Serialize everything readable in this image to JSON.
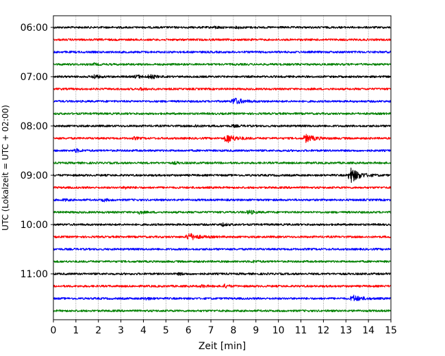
{
  "chart_data": {
    "type": "line",
    "title": "",
    "xlabel": "Zeit  [min]",
    "ylabel": "UTC (Lokalzeit = UTC + 02:00)",
    "xlim": [
      0,
      15
    ],
    "xticks": [
      "0",
      "1",
      "2",
      "3",
      "4",
      "5",
      "6",
      "7",
      "8",
      "9",
      "10",
      "11",
      "12",
      "13",
      "14",
      "15"
    ],
    "yticks": [
      "06:00",
      "07:00",
      "08:00",
      "09:00",
      "10:00",
      "11:00"
    ],
    "grid": "vertical dotted",
    "trace_interval_min": 15,
    "trace_colors": [
      "#000000",
      "#ff0000",
      "#0000ff",
      "#008000"
    ],
    "traces": [
      {
        "start": "06:00",
        "events": [
          {
            "t": 7.2,
            "amp": 1.4
          },
          {
            "t": 8.2,
            "amp": 1.2
          }
        ]
      },
      {
        "start": "06:15",
        "events": []
      },
      {
        "start": "06:30",
        "events": []
      },
      {
        "start": "06:45",
        "events": [
          {
            "t": 1.8,
            "amp": 1.2
          }
        ]
      },
      {
        "start": "07:00",
        "events": [
          {
            "t": 1.8,
            "amp": 3.2
          },
          {
            "t": 3.7,
            "amp": 2.6
          },
          {
            "t": 4.3,
            "amp": 3.5
          }
        ]
      },
      {
        "start": "07:15",
        "events": [
          {
            "t": 3.9,
            "amp": 1.6
          }
        ]
      },
      {
        "start": "07:30",
        "events": [
          {
            "t": 8.0,
            "amp": 5.0
          }
        ]
      },
      {
        "start": "07:45",
        "events": []
      },
      {
        "start": "08:00",
        "events": [
          {
            "t": 6.3,
            "amp": 1.6
          },
          {
            "t": 8.0,
            "amp": 1.4
          }
        ]
      },
      {
        "start": "08:15",
        "events": [
          {
            "t": 7.7,
            "amp": 6.5
          },
          {
            "t": 11.2,
            "amp": 5.5
          },
          {
            "t": 3.6,
            "amp": 1.5
          }
        ]
      },
      {
        "start": "08:30",
        "events": [
          {
            "t": 1.0,
            "amp": 2.4
          }
        ]
      },
      {
        "start": "08:45",
        "events": [
          {
            "t": 5.4,
            "amp": 1.3
          }
        ]
      },
      {
        "start": "09:00",
        "events": [
          {
            "t": 13.2,
            "amp": 11.0
          }
        ]
      },
      {
        "start": "09:15",
        "events": [
          {
            "t": 3.2,
            "amp": 1.5
          }
        ]
      },
      {
        "start": "09:30",
        "events": [
          {
            "t": 2.2,
            "amp": 2.0
          },
          {
            "t": 0.5,
            "amp": 1.2
          }
        ]
      },
      {
        "start": "09:45",
        "events": [
          {
            "t": 8.7,
            "amp": 3.0
          },
          {
            "t": 3.8,
            "amp": 1.8
          }
        ]
      },
      {
        "start": "10:00",
        "events": [
          {
            "t": 7.5,
            "amp": 2.0
          }
        ]
      },
      {
        "start": "10:15",
        "events": [
          {
            "t": 6.0,
            "amp": 5.5
          }
        ]
      },
      {
        "start": "10:30",
        "events": []
      },
      {
        "start": "10:45",
        "events": [
          {
            "t": 8.9,
            "amp": 1.3
          }
        ]
      },
      {
        "start": "11:00",
        "events": [
          {
            "t": 5.6,
            "amp": 1.4
          }
        ]
      },
      {
        "start": "11:15",
        "events": [
          {
            "t": 7.6,
            "amp": 2.2
          },
          {
            "t": 6.6,
            "amp": 1.6
          }
        ]
      },
      {
        "start": "11:30",
        "events": [
          {
            "t": 13.3,
            "amp": 4.5
          },
          {
            "t": 4.1,
            "amp": 1.8
          }
        ]
      },
      {
        "start": "11:45",
        "events": []
      }
    ]
  }
}
